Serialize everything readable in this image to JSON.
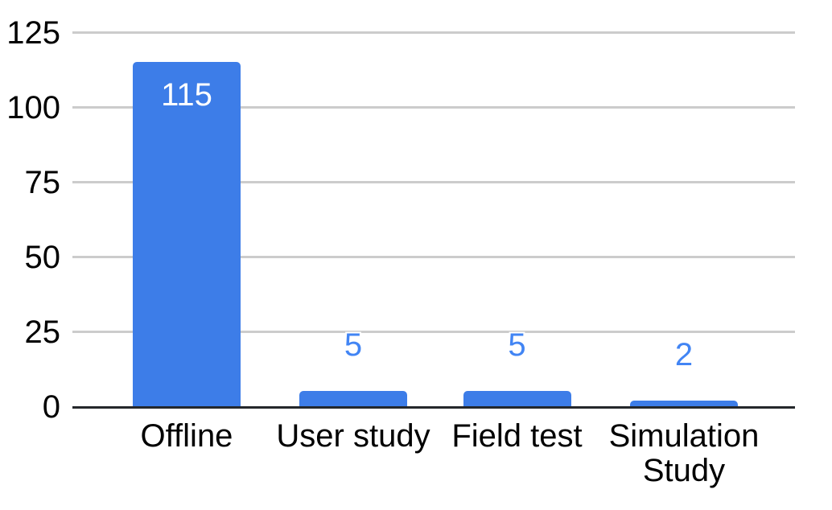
{
  "chart_data": {
    "type": "bar",
    "categories": [
      "Offline",
      "User study",
      "Field test",
      "Simulation Study"
    ],
    "values": [
      115,
      5,
      5,
      2
    ],
    "annotations": [
      "115",
      "5",
      "5",
      "2"
    ],
    "yticks": [
      0,
      25,
      50,
      75,
      100,
      125
    ],
    "ylim": [
      0,
      125
    ],
    "grid": true,
    "legend": "none",
    "colors": {
      "bar": "#3D7DE8",
      "annotation_inside": "#FFFFFF",
      "annotation_outside": "#4285F4",
      "gridline": "#CCCCCC",
      "axis_line": "#24272B",
      "tick_text": "#000000",
      "category_text": "#000000",
      "background": "#FFFFFF"
    }
  }
}
